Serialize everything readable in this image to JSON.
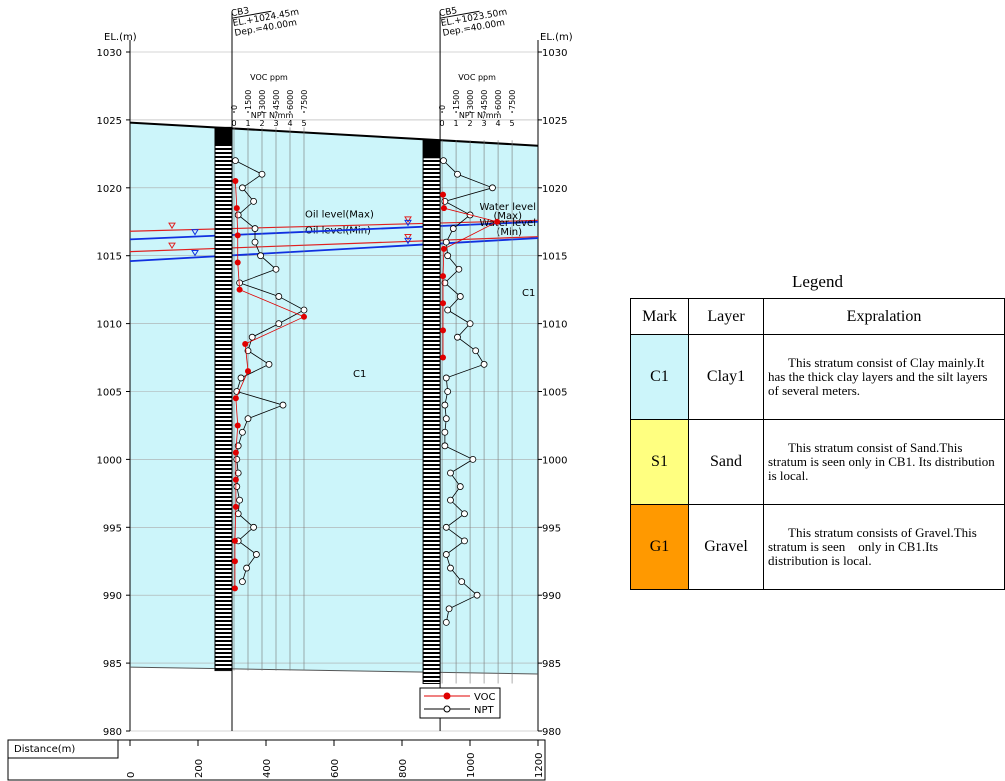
{
  "section": {
    "y_label": "EL.(m)",
    "ylim": [
      980,
      1030
    ],
    "yticks": [
      980,
      985,
      990,
      995,
      1000,
      1005,
      1010,
      1015,
      1020,
      1025,
      1030
    ],
    "x_label": "Distance(m)",
    "xlim": [
      0,
      1200
    ],
    "xticks": [
      0,
      200,
      400,
      600,
      800,
      1000,
      1200
    ],
    "ground": {
      "x": [
        0,
        1200
      ],
      "top": [
        1024.8,
        1023.1
      ],
      "bottom": [
        984.7,
        984.2
      ],
      "color": "#ccf5fa"
    },
    "layer_labels": [
      "C1",
      "C1"
    ],
    "levels": [
      {
        "label": "Oil level(Max)",
        "color": "#e02020",
        "elevations": [
          1016.8,
          1017.6
        ]
      },
      {
        "label": "Oil level(Min)",
        "color": "#e02020",
        "elevations": [
          1015.3,
          1016.4
        ]
      },
      {
        "label": "Water level",
        "sub": "(Max)",
        "color": "#1030e0",
        "elevations": [
          1016.2,
          1017.5
        ]
      },
      {
        "label": "Water level",
        "sub": "(Min)",
        "color": "#1030e0",
        "elevations": [
          1014.6,
          1016.3
        ]
      }
    ],
    "boreholes": [
      {
        "name": "CB3",
        "el_text": "EL.+1024.45m",
        "dep_text": "Dep.=40.00m",
        "elevation": 1024.45,
        "depth": 40,
        "distance": 300,
        "voc_title": "VOC ppm",
        "voc_lim": [
          0,
          7500
        ],
        "voc_ticks": [
          0,
          1500,
          3000,
          4500,
          6000,
          7500
        ],
        "npt_title": "NPT N/mm",
        "npt_lim": [
          0,
          5
        ],
        "npt_ticks": [
          0,
          1,
          2,
          3,
          4,
          5
        ],
        "npt": {
          "elevations": [
            1022,
            1021,
            1020,
            1019,
            1018,
            1017,
            1016,
            1015,
            1014,
            1013,
            1012,
            1011,
            1010,
            1009,
            1008,
            1007,
            1006,
            1005,
            1004,
            1003,
            1002,
            1001,
            1000,
            999,
            998,
            997,
            996,
            995,
            994,
            993,
            992,
            991
          ],
          "values": [
            0.1,
            2.0,
            0.6,
            1.4,
            0.3,
            1.5,
            1.5,
            1.9,
            3.0,
            0.4,
            3.2,
            5.0,
            3.2,
            1.3,
            1.0,
            2.5,
            0.5,
            0.2,
            3.5,
            1.0,
            0.6,
            0.3,
            0.2,
            0.3,
            0.2,
            0.4,
            0.3,
            1.4,
            0.3,
            1.6,
            0.9,
            0.6
          ]
        },
        "voc": {
          "elevations": [
            1020.5,
            1018.5,
            1016.5,
            1014.5,
            1012.5,
            1010.5,
            1008.5,
            1006.5,
            1004.5,
            1002.5,
            1000.5,
            998.5,
            996.5,
            994,
            992.5,
            990.5
          ],
          "values": [
            150,
            300,
            400,
            400,
            600,
            7500,
            1200,
            1500,
            200,
            400,
            200,
            200,
            200,
            100,
            100,
            100
          ]
        }
      },
      {
        "name": "CB5",
        "el_text": "EL.+1023.50m",
        "dep_text": "Dep.=40.00m",
        "elevation": 1023.5,
        "depth": 40,
        "distance": 912,
        "voc_title": "VOC ppm",
        "voc_lim": [
          0,
          7500
        ],
        "voc_ticks": [
          0,
          1500,
          3000,
          4500,
          6000,
          7500
        ],
        "npt_title": "NPT N/mm",
        "npt_lim": [
          0,
          5
        ],
        "npt_ticks": [
          0,
          1,
          2,
          3,
          4,
          5
        ],
        "npt": {
          "elevations": [
            1022,
            1021,
            1020,
            1019,
            1018,
            1017,
            1016,
            1015,
            1014,
            1013,
            1012,
            1011,
            1010,
            1009,
            1008,
            1007,
            1006,
            1005,
            1004,
            1003,
            1002,
            1001,
            1000,
            999,
            998,
            997,
            996,
            995,
            994,
            993,
            992,
            991,
            990,
            989,
            988
          ],
          "values": [
            0.1,
            1.1,
            3.6,
            0.2,
            2.0,
            0.8,
            0.3,
            0.4,
            1.2,
            0.2,
            1.3,
            0.4,
            2.0,
            1.1,
            2.4,
            3.0,
            0.3,
            0.4,
            0.2,
            0.3,
            0.2,
            0.2,
            2.2,
            0.6,
            1.3,
            0.6,
            1.6,
            0.3,
            1.6,
            0.3,
            0.6,
            1.4,
            2.5,
            0.5,
            0.3
          ]
        },
        "voc": {
          "elevations": [
            1019.5,
            1018.5,
            1017.5,
            1015.5,
            1013.5,
            1011.5,
            1009.5,
            1007.5
          ],
          "values": [
            100,
            200,
            5900,
            200,
            100,
            100,
            100,
            100
          ]
        }
      }
    ],
    "series_legend": [
      {
        "name": "VOC",
        "color": "#e00000"
      },
      {
        "name": "NPT",
        "color": "#000000"
      }
    ]
  },
  "legend_table": {
    "title": "Legend",
    "headers": [
      "Mark",
      "Layer",
      "Expralation"
    ],
    "rows": [
      {
        "mark": "C1",
        "color": "#ccf5fa",
        "layer": "Clay1",
        "text": "This stratum consist of Clay mainly.It has the thick clay layers and the silt layers of several meters."
      },
      {
        "mark": "S1",
        "color": "#ffff80",
        "layer": "Sand",
        "text": "This stratum consist of Sand.This stratum is seen only in CB1. Its distribution is local."
      },
      {
        "mark": "G1",
        "color": "#ff9900",
        "layer": "Gravel",
        "text": "This stratum consists of Gravel.This stratum is seen    only in CB1.Its distribution is local."
      }
    ]
  }
}
